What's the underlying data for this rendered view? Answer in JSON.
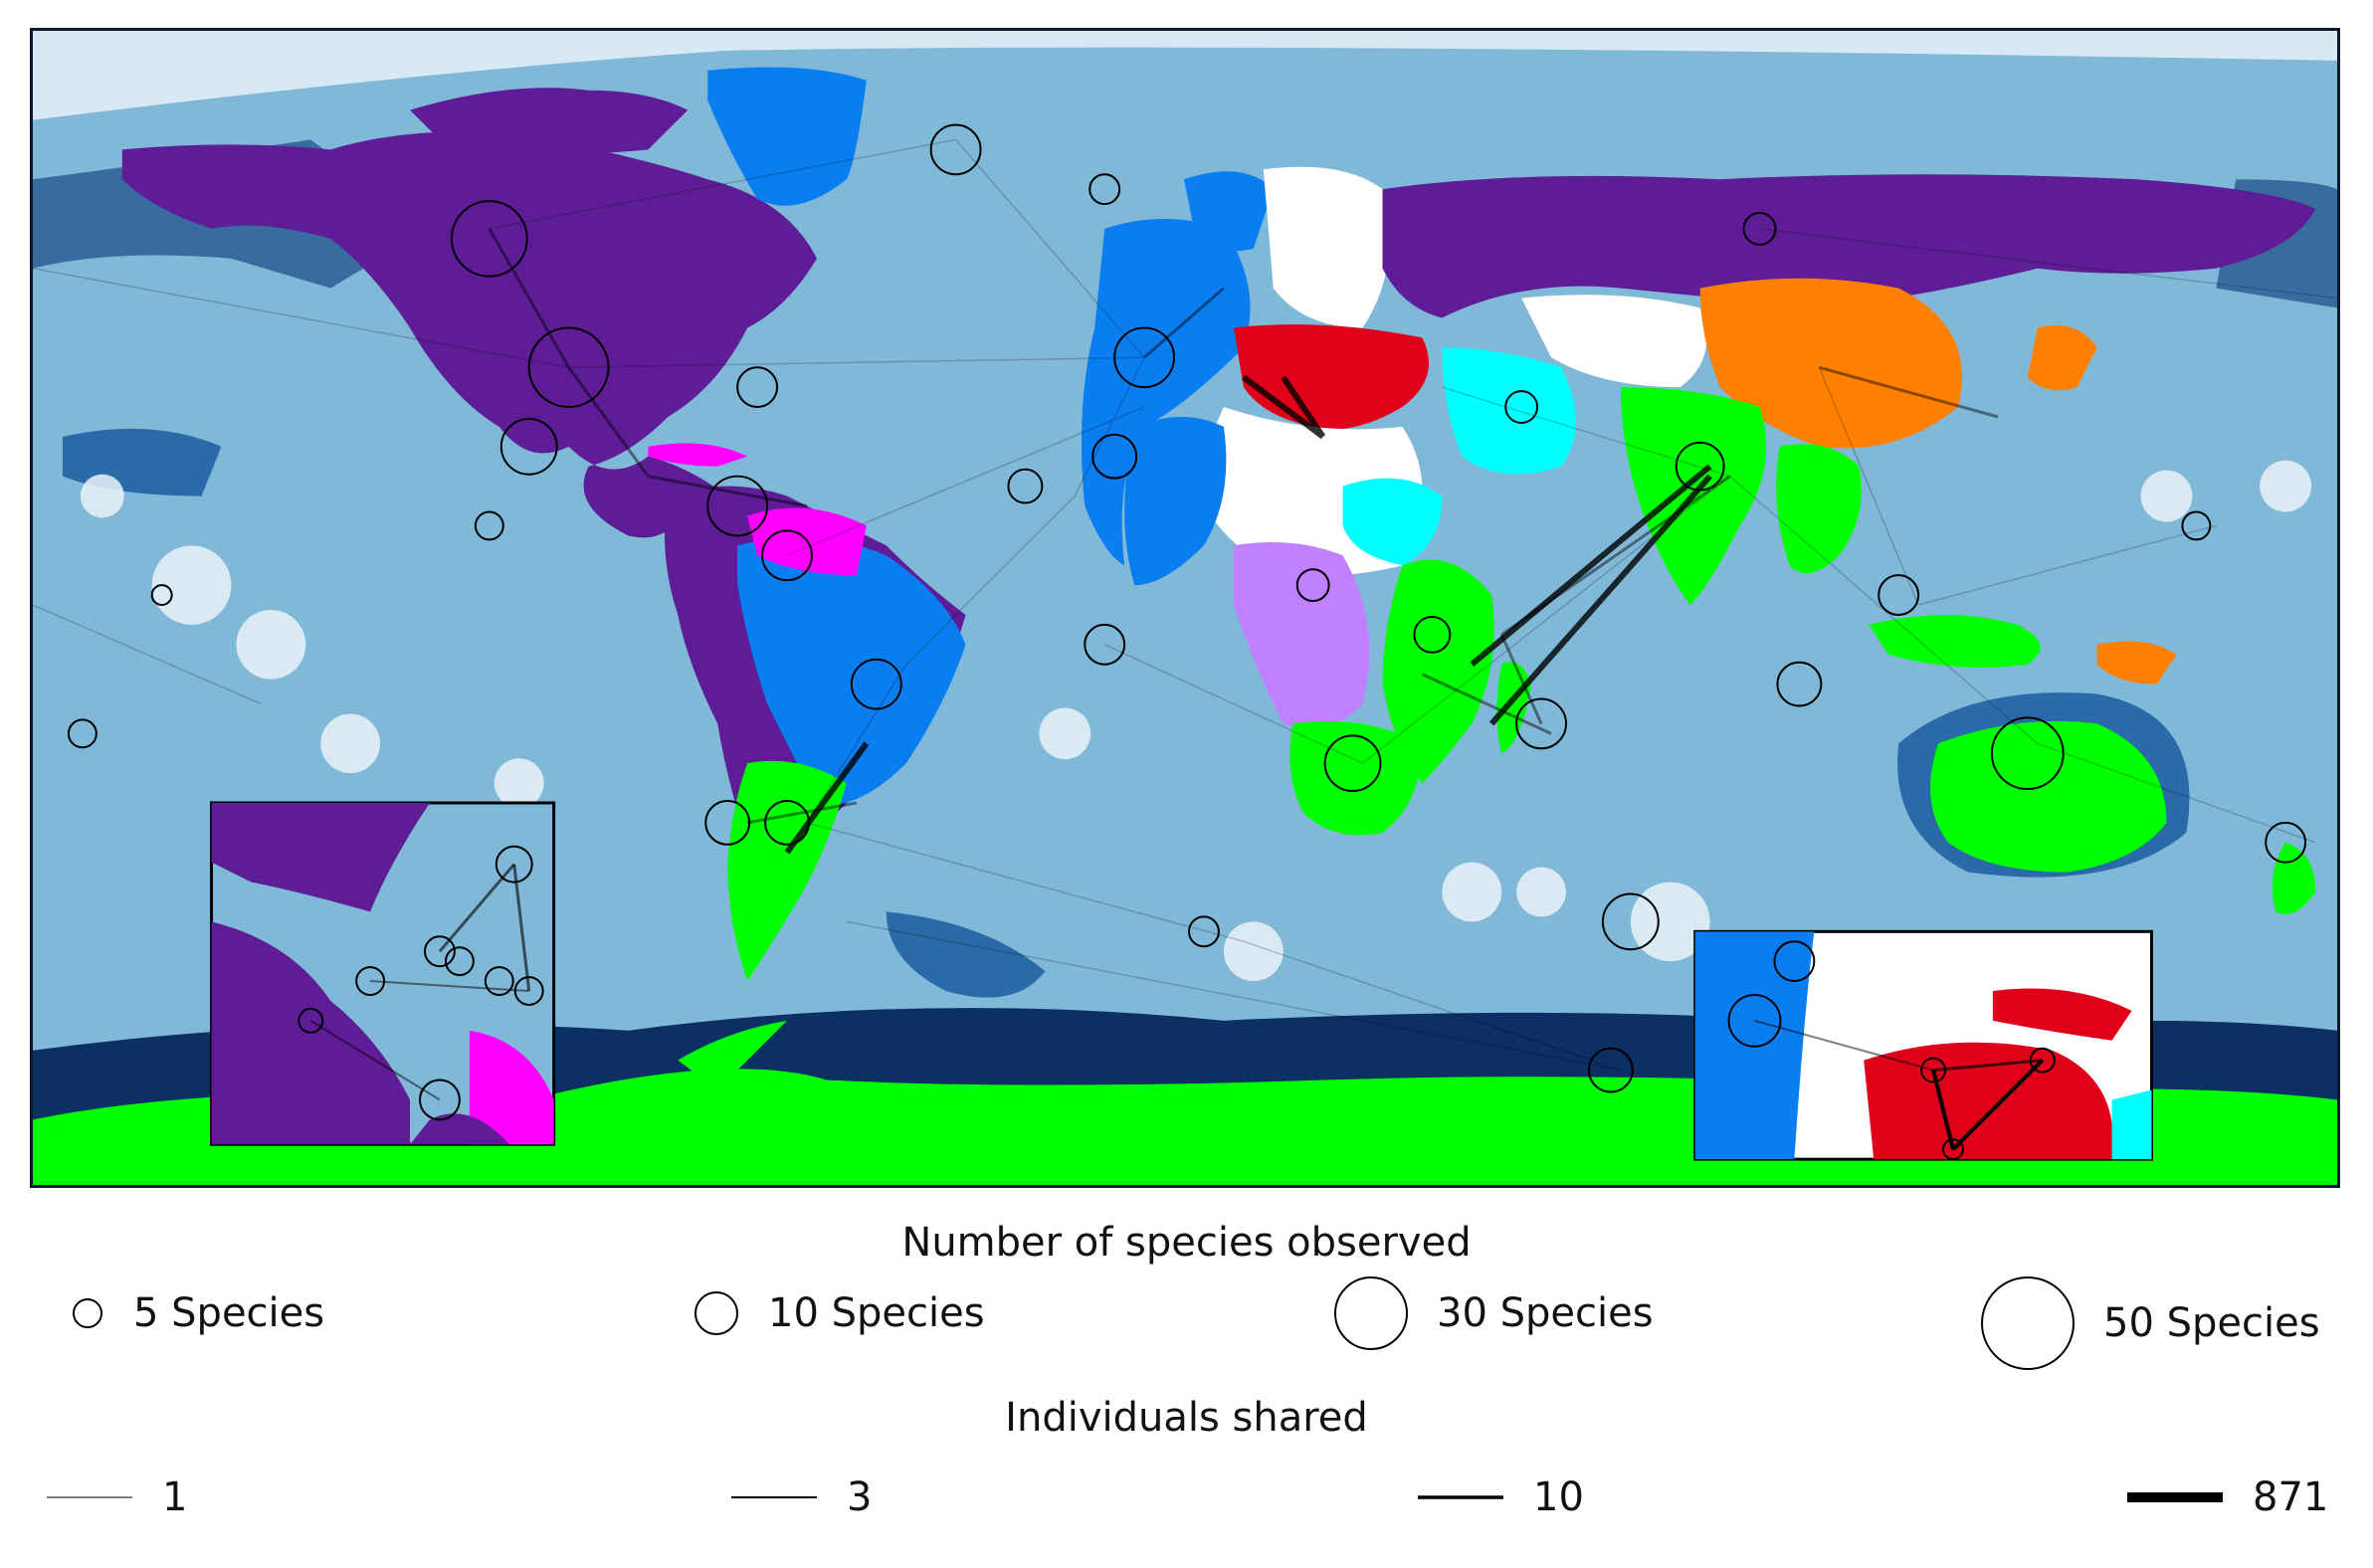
{
  "map": {
    "colors": {
      "ocean": "#80b8d8",
      "ocean_mid": "#4a8cc4",
      "ocean_dark": "#0c2f64",
      "halo": "#eaf2f8",
      "purple": "#5e1c96",
      "blue": "#0a7ef0",
      "magenta": "#ff00ff",
      "green": "#00ff00",
      "orange": "#ff8000",
      "red": "#e0001a",
      "cyan": "#00ffff",
      "lavender": "#c080ff",
      "white": "#ffffff",
      "edge": "#000000"
    },
    "insets": {
      "caribbean": "caribbean-inset",
      "mediterranean": "mediterranean-inset"
    }
  },
  "legend": {
    "species_title": "Number of species observed",
    "species": [
      {
        "label": "5 Species",
        "value": 5
      },
      {
        "label": "10 Species",
        "value": 10
      },
      {
        "label": "30 Species",
        "value": 30
      },
      {
        "label": "50 Species",
        "value": 50
      }
    ],
    "shared_title": "Individuals shared",
    "shared": [
      {
        "label": "1",
        "value": 1
      },
      {
        "label": "3",
        "value": 3
      },
      {
        "label": "10",
        "value": 10
      },
      {
        "label": "871",
        "value": 871
      }
    ]
  }
}
